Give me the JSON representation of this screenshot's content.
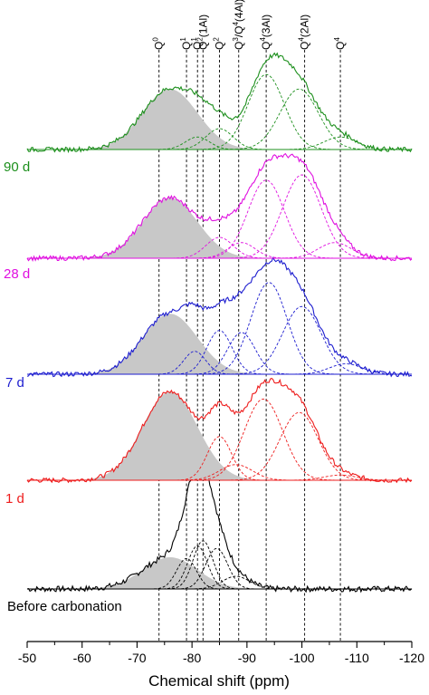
{
  "chart_data": {
    "type": "line",
    "xlabel": "Chemical shift (ppm)",
    "xlim": [
      -50,
      -120
    ],
    "x_ticks": [
      "-50",
      "-60",
      "-70",
      "-80",
      "-90",
      "-100",
      "-110",
      "-120"
    ],
    "x_tick_values": [
      -50,
      -60,
      -70,
      -80,
      -90,
      -100,
      -110,
      -120
    ],
    "grid": false,
    "reference_lines": [
      {
        "label": "Q0",
        "position": -74
      },
      {
        "label": "Q1",
        "position": -79
      },
      {
        "label": "Q1",
        "position": -81
      },
      {
        "label": "Q2(1Al)",
        "position": -82
      },
      {
        "label": "Q2",
        "position": -85
      },
      {
        "label": "Q3/Q4(4Al)",
        "position": -88.5
      },
      {
        "label": "Q4(3Al)",
        "position": -93.5
      },
      {
        "label": "Q4(2Al)",
        "position": -100.5
      },
      {
        "label": "Q4",
        "position": -107
      }
    ],
    "series": [
      {
        "name": "Before carbonation",
        "color": "#000000",
        "peak_ppm": -82,
        "components": [
          {
            "center": -76,
            "width": 5,
            "height": 0.25,
            "shaded": true
          },
          {
            "center": -79,
            "width": 1.8,
            "height": 0.24
          },
          {
            "center": -81,
            "width": 1.8,
            "height": 0.34
          },
          {
            "center": -82,
            "width": 1.8,
            "height": 0.38
          },
          {
            "center": -84.5,
            "width": 2.0,
            "height": 0.32
          },
          {
            "center": -88,
            "width": 2.5,
            "height": 0.1
          }
        ]
      },
      {
        "name": "1 d",
        "color": "#ee1c1c",
        "components": [
          {
            "center": -76,
            "width": 5,
            "height": 0.85,
            "shaded": true
          },
          {
            "center": -85,
            "width": 2.2,
            "height": 0.42
          },
          {
            "center": -88,
            "width": 3,
            "height": 0.15
          },
          {
            "center": -93,
            "width": 3.5,
            "height": 0.78
          },
          {
            "center": -99.5,
            "width": 3.5,
            "height": 0.65
          },
          {
            "center": -107,
            "width": 3,
            "height": 0.05
          }
        ]
      },
      {
        "name": "7 d",
        "color": "#1c1ccf",
        "components": [
          {
            "center": -76,
            "width": 5,
            "height": 0.58,
            "shaded": true
          },
          {
            "center": -80.5,
            "width": 2,
            "height": 0.22
          },
          {
            "center": -85,
            "width": 2.3,
            "height": 0.42
          },
          {
            "center": -89,
            "width": 2.5,
            "height": 0.4
          },
          {
            "center": -94,
            "width": 3.3,
            "height": 0.88
          },
          {
            "center": -100,
            "width": 3.5,
            "height": 0.65
          },
          {
            "center": -108,
            "width": 3,
            "height": 0.1
          }
        ]
      },
      {
        "name": "28 d",
        "color": "#e010e0",
        "components": [
          {
            "center": -76,
            "width": 5,
            "height": 0.58,
            "shaded": true
          },
          {
            "center": -85,
            "width": 2.5,
            "height": 0.2
          },
          {
            "center": -89,
            "width": 2.5,
            "height": 0.15
          },
          {
            "center": -93.5,
            "width": 3.3,
            "height": 0.75
          },
          {
            "center": -100,
            "width": 3.5,
            "height": 0.8
          },
          {
            "center": -106,
            "width": 3,
            "height": 0.15
          }
        ]
      },
      {
        "name": "90 d",
        "color": "#1c8f1c",
        "components": [
          {
            "center": -76,
            "width": 5,
            "height": 0.58,
            "shaded": true
          },
          {
            "center": -81,
            "width": 2.2,
            "height": 0.12
          },
          {
            "center": -85,
            "width": 2.5,
            "height": 0.2
          },
          {
            "center": -93.5,
            "width": 3.3,
            "height": 0.72
          },
          {
            "center": -99.5,
            "width": 3.5,
            "height": 0.58
          },
          {
            "center": -107,
            "width": 3,
            "height": 0.12
          }
        ]
      }
    ]
  },
  "colors": {
    "shade": "#c8c8c8",
    "axis": "#000000",
    "reference_line": "#000000"
  }
}
